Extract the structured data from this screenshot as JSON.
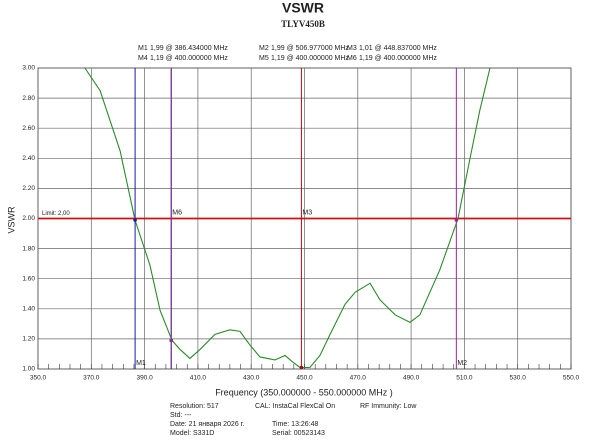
{
  "chart_data": {
    "type": "line",
    "title": "VSWR",
    "subtitle": "TLYV450B",
    "x_label": "Frequency (350.000000 - 550.000000 MHz )",
    "y_label": "VSWR",
    "xlim": [
      350,
      550
    ],
    "ylim": [
      1,
      3
    ],
    "xticks": [
      {
        "value": 350,
        "label": "350.0"
      },
      {
        "value": 370,
        "label": "370.0"
      },
      {
        "value": 390,
        "label": "390.0"
      },
      {
        "value": 410,
        "label": "410.0"
      },
      {
        "value": 430,
        "label": "430.0"
      },
      {
        "value": 450,
        "label": "450.0"
      },
      {
        "value": 470,
        "label": "470.0"
      },
      {
        "value": 490,
        "label": "490.0"
      },
      {
        "value": 510,
        "label": "510.0"
      },
      {
        "value": 530,
        "label": "530.0"
      },
      {
        "value": 550,
        "label": "550.0"
      }
    ],
    "yticks": [
      {
        "value": 1,
        "label": "1.00"
      },
      {
        "value": 1.2,
        "label": "1.20"
      },
      {
        "value": 1.4,
        "label": "1.40"
      },
      {
        "value": 1.6,
        "label": "1.60"
      },
      {
        "value": 1.8,
        "label": "1.80"
      },
      {
        "value": 2,
        "label": "2.00"
      },
      {
        "value": 2.2,
        "label": "2.20"
      },
      {
        "value": 2.4,
        "label": "2.40"
      },
      {
        "value": 2.6,
        "label": "2.60"
      },
      {
        "value": 2.8,
        "label": "2.80"
      },
      {
        "value": 3,
        "label": "3.00"
      }
    ],
    "grid": true,
    "x": [
      367.6,
      373.3,
      380.8,
      386.4,
      392,
      395.8,
      400.3,
      403.3,
      407,
      410.8,
      416.4,
      422,
      425.8,
      429.5,
      433.3,
      438.9,
      442.7,
      445.3,
      448.3,
      452,
      455.8,
      459.6,
      465.2,
      469,
      474.6,
      478.3,
      484,
      489.6,
      493.3,
      500.8,
      507.6,
      512,
      515.8,
      519.6
    ],
    "series": [
      {
        "color": "#2a8a2a",
        "values": [
          3.0,
          2.85,
          2.45,
          1.99,
          1.69,
          1.39,
          1.19,
          1.13,
          1.07,
          1.13,
          1.23,
          1.26,
          1.25,
          1.16,
          1.08,
          1.06,
          1.09,
          1.05,
          1.01,
          1.01,
          1.09,
          1.23,
          1.43,
          1.51,
          1.57,
          1.46,
          1.36,
          1.31,
          1.36,
          1.66,
          2.0,
          2.39,
          2.72,
          3.0
        ]
      }
    ],
    "limit": {
      "value": 2,
      "label": "Limit: 2,00",
      "color": "#d01010"
    },
    "markers": [
      {
        "name": "M1",
        "freq": 386.434,
        "vswr": 1.99,
        "readout": "1,99 @ 386.434000 MHz",
        "color": "#1a1aa8"
      },
      {
        "name": "M2",
        "freq": 506.977,
        "vswr": 1.99,
        "readout": "1,99 @ 506.977000 MHz",
        "color": "#a020a0"
      },
      {
        "name": "M3",
        "freq": 448.837,
        "vswr": 1.01,
        "readout": "1,01 @ 448.837000 MHz",
        "color": "#a01010"
      },
      {
        "name": "M4",
        "freq": 400,
        "vswr": 1.19,
        "readout": "1,19 @ 400.000000 MHz",
        "color": "#108080"
      },
      {
        "name": "M5",
        "freq": 400,
        "vswr": 1.19,
        "readout": "1,19 @ 400.000000 MHz",
        "color": "#108080"
      },
      {
        "name": "M6",
        "freq": 400,
        "vswr": 1.19,
        "readout": "1,19 @ 400.000000 MHz",
        "color": "#a020a0"
      }
    ],
    "info": {
      "resolution": "Resolution: 517",
      "std": "Std: ---",
      "date": "Date: 21 января 2026 г.",
      "model": "Model: S331D",
      "cal": "CAL: InstaCal FlexCal On",
      "time": "Time: 13:26:48",
      "serial": "Serial: 00523143",
      "rf": "RF Immunity: Low"
    }
  }
}
